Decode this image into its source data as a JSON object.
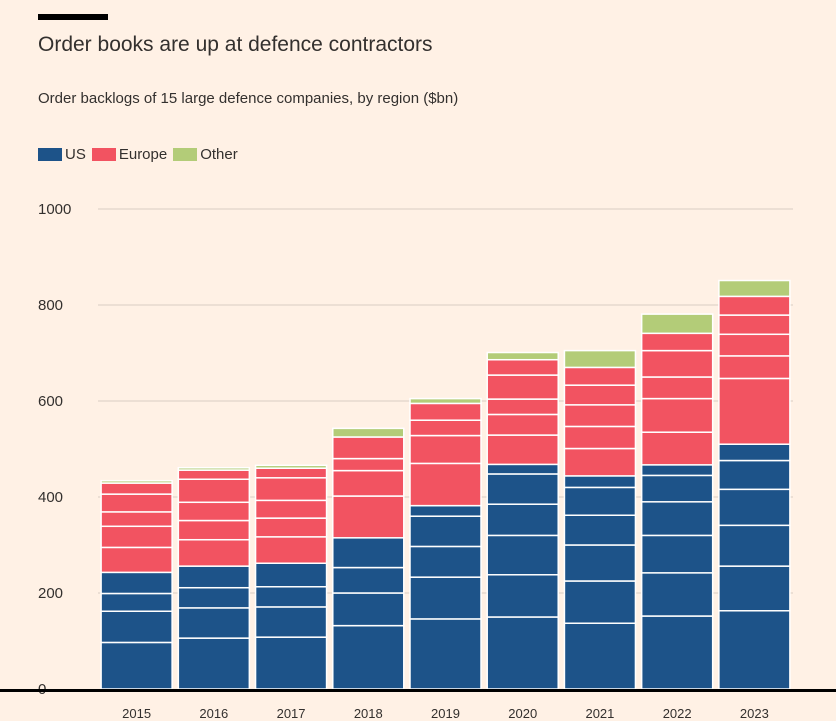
{
  "header": {
    "title": "Order books are up at defence contractors",
    "subtitle": "Order backlogs of 15 large defence companies, by region ($bn)"
  },
  "legend": [
    {
      "label": "US",
      "color": "#1d5389"
    },
    {
      "label": "Europe",
      "color": "#f25361"
    },
    {
      "label": "Other",
      "color": "#b3cc78"
    }
  ],
  "chart_data": {
    "type": "bar",
    "stacked": true,
    "title": "Order books are up at defence contractors",
    "subtitle": "Order backlogs of 15 large defence companies, by region ($bn)",
    "categories": [
      "2015",
      "2016",
      "2017",
      "2018",
      "2019",
      "2020",
      "2021",
      "2022",
      "2023"
    ],
    "y_ticks": [
      0,
      200,
      400,
      600,
      800,
      1000
    ],
    "ylim": [
      0,
      1000
    ],
    "grid": true,
    "legend_position": "top-left",
    "series": [
      {
        "name": "US",
        "color": "#1d5389",
        "values": [
          243,
          256,
          262,
          315,
          382,
          468,
          444,
          467,
          510
        ],
        "segments": [
          [
            97,
            65,
            37,
            44
          ],
          [
            106,
            63,
            42,
            45
          ],
          [
            108,
            63,
            42,
            49
          ],
          [
            132,
            68,
            53,
            62
          ],
          [
            146,
            87,
            64,
            63,
            22
          ],
          [
            150,
            88,
            82,
            65,
            63,
            20
          ],
          [
            137,
            88,
            75,
            62,
            58,
            24
          ],
          [
            152,
            90,
            78,
            70,
            55,
            22
          ],
          [
            163,
            93,
            85,
            75,
            60,
            34
          ]
        ]
      },
      {
        "name": "Europe",
        "color": "#f25361",
        "values": [
          186,
          200,
          198,
          210,
          213,
          218,
          226,
          274,
          308
        ],
        "segments": [
          [
            52,
            44,
            30,
            37,
            23
          ],
          [
            55,
            40,
            38,
            48,
            19
          ],
          [
            55,
            39,
            37,
            47,
            20
          ],
          [
            87,
            53,
            25,
            45
          ],
          [
            88,
            58,
            32,
            35
          ],
          [
            61,
            43,
            32,
            50,
            32
          ],
          [
            57,
            46,
            45,
            41,
            37
          ],
          [
            68,
            70,
            45,
            55,
            36
          ],
          [
            137,
            47,
            45,
            40,
            39
          ]
        ]
      },
      {
        "name": "Other",
        "color": "#b3cc78",
        "values": [
          5,
          5,
          6,
          18,
          10,
          15,
          35,
          40,
          33
        ],
        "segments": [
          [
            5
          ],
          [
            5
          ],
          [
            6
          ],
          [
            18
          ],
          [
            10
          ],
          [
            15
          ],
          [
            35
          ],
          [
            40
          ],
          [
            33
          ]
        ]
      }
    ]
  }
}
